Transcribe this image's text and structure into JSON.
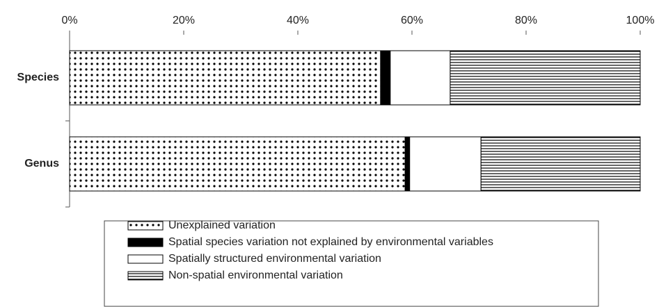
{
  "chart_data": {
    "type": "stacked-barh",
    "categories": [
      "Species",
      "Genus"
    ],
    "series": [
      {
        "name": "Unexplained variation",
        "color": "#000000",
        "pattern": "dots",
        "values": [
          54.5,
          58.8
        ]
      },
      {
        "name": "Spatial species variation not explained by environmental variables",
        "color": "#000000",
        "pattern": "solid",
        "values": [
          1.7,
          0.8
        ]
      },
      {
        "name": "Spatially structured environmental variation",
        "color": "#ffffff",
        "pattern": "none",
        "values": [
          10.5,
          12.5
        ]
      },
      {
        "name": "Non-spatial environmental variation",
        "color": "#000000",
        "pattern": "horizontal-lines",
        "values": [
          33.3,
          27.9
        ]
      }
    ],
    "xlim": [
      0,
      100
    ],
    "xticks": [
      {
        "value": 0,
        "label": "0%"
      },
      {
        "value": 20,
        "label": "20%"
      },
      {
        "value": 40,
        "label": "40%"
      },
      {
        "value": 60,
        "label": "60%"
      },
      {
        "value": 80,
        "label": "80%"
      },
      {
        "value": 100,
        "label": "100%"
      }
    ],
    "legend": "bottom"
  }
}
